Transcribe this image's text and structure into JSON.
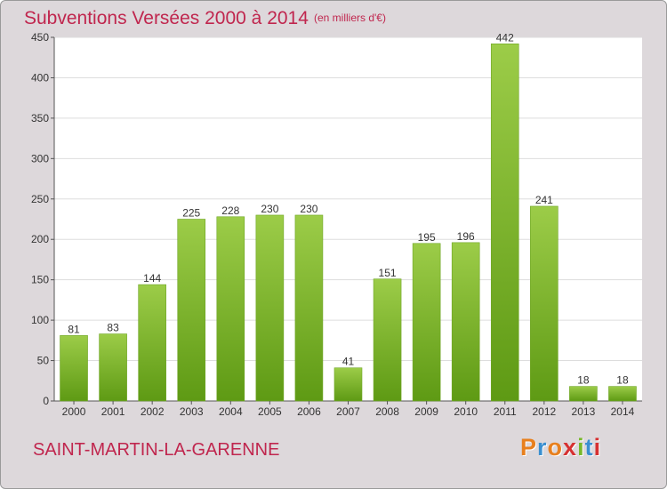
{
  "header": {
    "title": "Subventions Versées 2000 à 2014",
    "subtitle": "(en milliers d'€)"
  },
  "footer": {
    "place": "SAINT-MARTIN-LA-GARENNE",
    "logo_text": "Proxiti",
    "logo_colors": [
      "#e8801e",
      "#3a8fd0",
      "#e8801e",
      "#d63031",
      "#78b82a",
      "#3a8fd0",
      "#d63031"
    ]
  },
  "chart_data": {
    "type": "bar",
    "title": "Subventions Versées 2000 à 2014",
    "subtitle": "(en milliers d'€)",
    "categories": [
      "2000",
      "2001",
      "2002",
      "2003",
      "2004",
      "2005",
      "2006",
      "2007",
      "2008",
      "2009",
      "2010",
      "2011",
      "2012",
      "2013",
      "2014"
    ],
    "values": [
      81,
      83,
      144,
      225,
      228,
      230,
      230,
      41,
      151,
      195,
      196,
      442,
      241,
      18,
      18
    ],
    "ylim": [
      0,
      450
    ],
    "yticks": [
      0,
      50,
      100,
      150,
      200,
      250,
      300,
      350,
      400,
      450
    ],
    "grid": true,
    "legend": "none",
    "colors": {
      "bar_top": "#9ccc48",
      "bar_bottom": "#5e9a14",
      "plot_bg": "#ffffff",
      "grid": "#dddddd"
    }
  }
}
